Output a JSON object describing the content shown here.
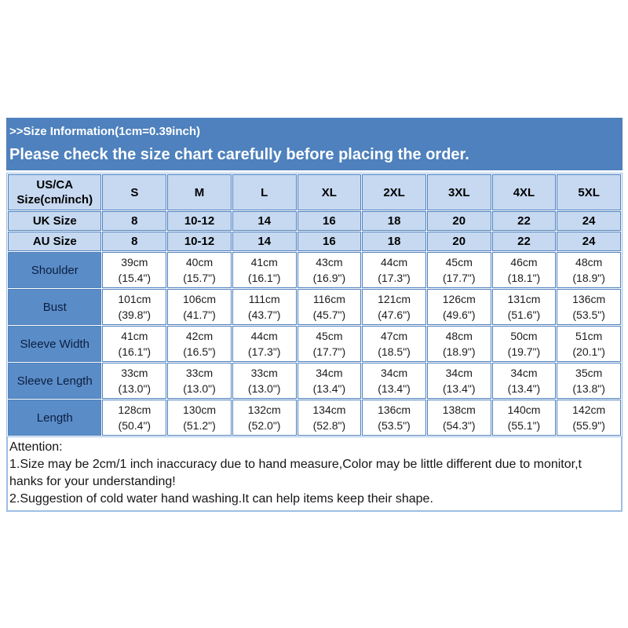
{
  "banner": {
    "line1": ">>Size Information(1cm=0.39inch)",
    "line2": "Please check the size chart carefully before placing the order.",
    "background": "#4e81bd",
    "text_color": "#ffffff"
  },
  "size_table": {
    "corner_label": "US/CA Size(cm/inch)",
    "size_columns": [
      "S",
      "M",
      "L",
      "XL",
      "2XL",
      "3XL",
      "4XL",
      "5XL"
    ],
    "region_rows": [
      {
        "label": "UK Size",
        "values": [
          "8",
          "10-12",
          "14",
          "16",
          "18",
          "20",
          "22",
          "24"
        ]
      },
      {
        "label": "AU Size",
        "values": [
          "8",
          "10-12",
          "14",
          "16",
          "18",
          "20",
          "22",
          "24"
        ]
      }
    ],
    "measurement_rows": [
      {
        "label": "Shoulder",
        "cm": [
          "39cm",
          "40cm",
          "41cm",
          "43cm",
          "44cm",
          "45cm",
          "46cm",
          "48cm"
        ],
        "inch": [
          "(15.4\")",
          "(15.7\")",
          "(16.1\")",
          "(16.9\")",
          "(17.3\")",
          "(17.7\")",
          "(18.1\")",
          "(18.9\")"
        ]
      },
      {
        "label": "Bust",
        "cm": [
          "101cm",
          "106cm",
          "111cm",
          "116cm",
          "121cm",
          "126cm",
          "131cm",
          "136cm"
        ],
        "inch": [
          "(39.8\")",
          "(41.7\")",
          "(43.7\")",
          "(45.7\")",
          "(47.6\")",
          "(49.6\")",
          "(51.6\")",
          "(53.5\")"
        ]
      },
      {
        "label": "Sleeve Width",
        "cm": [
          "41cm",
          "42cm",
          "44cm",
          "45cm",
          "47cm",
          "48cm",
          "50cm",
          "51cm"
        ],
        "inch": [
          "(16.1\")",
          "(16.5\")",
          "(17.3\")",
          "(17.7\")",
          "(18.5\")",
          "(18.9\")",
          "(19.7\")",
          "(20.1\")"
        ]
      },
      {
        "label": "Sleeve Length",
        "cm": [
          "33cm",
          "33cm",
          "33cm",
          "34cm",
          "34cm",
          "34cm",
          "34cm",
          "35cm"
        ],
        "inch": [
          "(13.0\")",
          "(13.0\")",
          "(13.0\")",
          "(13.4\")",
          "(13.4\")",
          "(13.4\")",
          "(13.4\")",
          "(13.8\")"
        ]
      },
      {
        "label": "Length",
        "cm": [
          "128cm",
          "130cm",
          "132cm",
          "134cm",
          "136cm",
          "138cm",
          "140cm",
          "142cm"
        ],
        "inch": [
          "(50.4\")",
          "(51.2\")",
          "(52.0\")",
          "(52.8\")",
          "(53.5\")",
          "(54.3\")",
          "(55.1\")",
          "(55.9\")"
        ]
      }
    ],
    "colors": {
      "banner_bg": "#4e81bd",
      "header_cell_bg": "#c6d9f1",
      "label_cell_bg": "#5a8cc8",
      "grid_border": "#4f81bd",
      "outer_border": "#9dbee4"
    }
  },
  "attention": {
    "lines": [
      "Attention:",
      "1.Size may be 2cm/1 inch inaccuracy due to hand measure,Color may be little different due to monitor,t",
      "hanks for your understanding!",
      "2.Suggestion of cold water hand washing.It can help items keep their shape."
    ]
  }
}
